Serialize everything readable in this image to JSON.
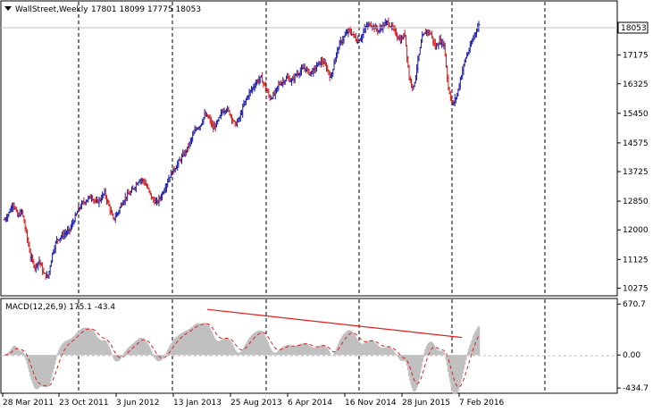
{
  "header": {
    "symbol": "WallStreet,Weekly",
    "ohlc": "17801 18099 17775 18053"
  },
  "colors": {
    "up_bar": "#1a1aa8",
    "down_bar": "#d01818",
    "histogram": "#c0c0c0",
    "signal": "#e02020",
    "trendline": "#e02020",
    "grid": "#000000",
    "price_tag_bg": "#ffffff"
  },
  "chart_data": [
    {
      "type": "ohlc",
      "title": "WallStreet,Weekly",
      "y_ticks": [
        10275,
        11125,
        12000,
        12850,
        13725,
        14575,
        15450,
        16325,
        17175,
        18053
      ],
      "y_range": [
        10100,
        18700
      ],
      "current_price": 18053,
      "x_labels": [
        "28 Mar 2011",
        "23 Oct 2011",
        "3 Jun 2012",
        "13 Jan 2013",
        "25 Aug 2013",
        "6 Apr 2014",
        "16 Nov 2014",
        "28 Jun 2015",
        "7 Feb 2016"
      ],
      "close_series": [
        12300,
        12500,
        12800,
        12400,
        12550,
        11900,
        11200,
        10900,
        11100,
        10700,
        10600,
        11300,
        11700,
        11800,
        11900,
        12000,
        12300,
        12600,
        12800,
        12900,
        13000,
        12800,
        12900,
        13100,
        12700,
        12300,
        12500,
        12800,
        13000,
        13100,
        13300,
        13500,
        13450,
        13200,
        12900,
        12800,
        13000,
        13300,
        13600,
        13800,
        14000,
        14200,
        14400,
        14700,
        15000,
        15100,
        15400,
        15300,
        15000,
        15200,
        15500,
        15600,
        15400,
        15100,
        15300,
        15700,
        16000,
        16200,
        16400,
        16500,
        16200,
        15900,
        16000,
        16300,
        16400,
        16500,
        16400,
        16600,
        16700,
        16800,
        16650,
        16700,
        16900,
        17000,
        16800,
        16500,
        17100,
        17500,
        17700,
        17900,
        17800,
        17600,
        17700,
        18000,
        18100,
        18000,
        17900,
        18050,
        18150,
        18000,
        17800,
        17600,
        17800,
        16500,
        16200,
        17000,
        17700,
        17900,
        17800,
        17400,
        17600,
        17500,
        16200,
        15700,
        16000,
        16600,
        17100,
        17400,
        17800,
        18053
      ],
      "grid_vertical": "dashed",
      "legend": "none"
    },
    {
      "type": "histogram",
      "title": "MACD(12,26,9) 175.1 -43.4",
      "y_ticks": [
        670.7,
        0.0,
        -434.7
      ],
      "y_range": [
        -480,
        720
      ],
      "signal": "dashed line",
      "trendline": "descending line across histogram peaks"
    }
  ]
}
